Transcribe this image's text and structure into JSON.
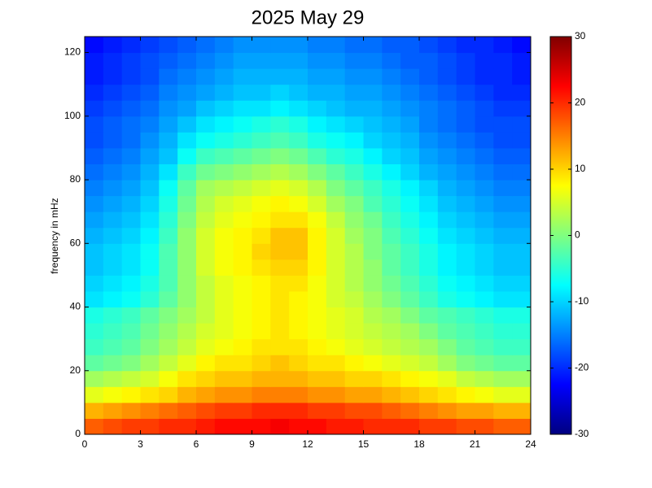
{
  "chart_data": {
    "type": "heatmap",
    "title": "2025 May 29",
    "y_label": "frequency in mHz",
    "colormap": "jet",
    "x": [
      0,
      1,
      2,
      3,
      4,
      5,
      6,
      7,
      8,
      9,
      10,
      11,
      12,
      13,
      14,
      15,
      16,
      17,
      18,
      19,
      20,
      21,
      22,
      23,
      24
    ],
    "y": [
      0,
      5,
      10,
      15,
      20,
      25,
      30,
      35,
      40,
      45,
      50,
      55,
      60,
      65,
      70,
      75,
      80,
      85,
      90,
      95,
      100,
      105,
      110,
      115,
      120,
      125
    ],
    "xlim": [
      0,
      24
    ],
    "xticks": [
      0,
      3,
      6,
      9,
      12,
      15,
      18,
      21,
      24
    ],
    "ylim": [
      0,
      125
    ],
    "yticks": [
      0,
      20,
      40,
      60,
      80,
      100,
      120
    ],
    "clim": [
      -30,
      30
    ],
    "cticks": [
      -30,
      -20,
      -10,
      0,
      10,
      20,
      30
    ],
    "values": [
      [
        17,
        18,
        19,
        19,
        20,
        20,
        21,
        22,
        22,
        22,
        23,
        22,
        22,
        21,
        21,
        20,
        20,
        20,
        19,
        19,
        18,
        18,
        17,
        17
      ],
      [
        12,
        13,
        14,
        15,
        16,
        17,
        18,
        19,
        19,
        20,
        20,
        20,
        19,
        19,
        18,
        18,
        17,
        16,
        15,
        14,
        13,
        13,
        12,
        12
      ],
      [
        6,
        7,
        8,
        9,
        10,
        12,
        13,
        14,
        14,
        15,
        15,
        15,
        14,
        14,
        13,
        13,
        12,
        11,
        10,
        9,
        8,
        7,
        6,
        6
      ],
      [
        2,
        3,
        4,
        5,
        7,
        9,
        10,
        11,
        11,
        12,
        12,
        12,
        11,
        11,
        10,
        10,
        9,
        8,
        7,
        6,
        4,
        3,
        2,
        2
      ],
      [
        -2,
        -1,
        0,
        2,
        4,
        6,
        8,
        9,
        9,
        10,
        11,
        10,
        9,
        9,
        8,
        7,
        6,
        5,
        4,
        2,
        0,
        -1,
        -2,
        -2
      ],
      [
        -4,
        -3,
        -2,
        0,
        2,
        4,
        6,
        7,
        8,
        9,
        9,
        9,
        8,
        7,
        6,
        5,
        4,
        3,
        2,
        0,
        -2,
        -3,
        -4,
        -4
      ],
      [
        -5,
        -4,
        -3,
        -1,
        1,
        3,
        5,
        6,
        7,
        8,
        9,
        8,
        7,
        6,
        5,
        4,
        3,
        2,
        0,
        -2,
        -3,
        -4,
        -5,
        -5
      ],
      [
        -6,
        -5,
        -4,
        -2,
        0,
        2,
        4,
        6,
        7,
        8,
        9,
        8,
        7,
        6,
        5,
        3,
        2,
        0,
        -2,
        -3,
        -4,
        -5,
        -6,
        -6
      ],
      [
        -9,
        -8,
        -7,
        -5,
        -2,
        1,
        4,
        6,
        7,
        8,
        9,
        8,
        7,
        5,
        4,
        2,
        0,
        -2,
        -4,
        -6,
        -7,
        -8,
        -9,
        -9
      ],
      [
        -10,
        -9,
        -8,
        -6,
        -3,
        1,
        4,
        6,
        7,
        8,
        9,
        9,
        7,
        5,
        3,
        1,
        -1,
        -3,
        -5,
        -7,
        -8,
        -9,
        -10,
        -10
      ],
      [
        -11,
        -10,
        -9,
        -7,
        -3,
        1,
        5,
        7,
        8,
        9,
        10,
        10,
        8,
        5,
        3,
        1,
        -2,
        -4,
        -6,
        -8,
        -9,
        -10,
        -11,
        -11
      ],
      [
        -11,
        -10,
        -9,
        -7,
        -3,
        1,
        5,
        7,
        8,
        10,
        11,
        11,
        8,
        5,
        3,
        0,
        -2,
        -4,
        -6,
        -8,
        -9,
        -10,
        -11,
        -11
      ],
      [
        -12,
        -11,
        -10,
        -8,
        -4,
        1,
        5,
        7,
        8,
        9,
        11,
        11,
        8,
        5,
        2,
        0,
        -3,
        -5,
        -7,
        -9,
        -10,
        -11,
        -12,
        -12
      ],
      [
        -13,
        -12,
        -11,
        -9,
        -5,
        0,
        4,
        6,
        7,
        8,
        9,
        9,
        7,
        4,
        1,
        -1,
        -4,
        -6,
        -8,
        -10,
        -11,
        -12,
        -13,
        -13
      ],
      [
        -14,
        -13,
        -12,
        -10,
        -6,
        -1,
        3,
        5,
        6,
        7,
        8,
        7,
        5,
        2,
        0,
        -3,
        -5,
        -7,
        -9,
        -11,
        -12,
        -13,
        -14,
        -14
      ],
      [
        -15,
        -14,
        -13,
        -11,
        -7,
        -2,
        2,
        3,
        4,
        5,
        6,
        5,
        3,
        0,
        -2,
        -4,
        -6,
        -8,
        -10,
        -12,
        -13,
        -14,
        -15,
        -15
      ],
      [
        -16,
        -15,
        -14,
        -12,
        -9,
        -4,
        -1,
        0,
        1,
        2,
        3,
        2,
        0,
        -2,
        -4,
        -6,
        -8,
        -10,
        -12,
        -13,
        -14,
        -15,
        -16,
        -16
      ],
      [
        -17,
        -16,
        -15,
        -13,
        -11,
        -7,
        -4,
        -3,
        -2,
        -1,
        0,
        -1,
        -3,
        -5,
        -6,
        -8,
        -10,
        -11,
        -13,
        -14,
        -15,
        -16,
        -17,
        -17
      ],
      [
        -18,
        -17,
        -16,
        -14,
        -12,
        -9,
        -7,
        -6,
        -5,
        -4,
        -3,
        -4,
        -6,
        -7,
        -8,
        -10,
        -11,
        -12,
        -14,
        -15,
        -16,
        -17,
        -18,
        -18
      ],
      [
        -18,
        -17,
        -16,
        -15,
        -13,
        -11,
        -9,
        -8,
        -7,
        -6,
        -5,
        -6,
        -8,
        -9,
        -10,
        -11,
        -12,
        -13,
        -15,
        -16,
        -17,
        -18,
        -18,
        -18
      ],
      [
        -19,
        -18,
        -17,
        -16,
        -14,
        -13,
        -11,
        -10,
        -9,
        -9,
        -8,
        -9,
        -10,
        -11,
        -12,
        -12,
        -13,
        -14,
        -15,
        -16,
        -17,
        -18,
        -19,
        -19
      ],
      [
        -20,
        -19,
        -18,
        -17,
        -15,
        -14,
        -13,
        -12,
        -11,
        -11,
        -10,
        -11,
        -12,
        -12,
        -13,
        -13,
        -14,
        -15,
        -16,
        -17,
        -18,
        -19,
        -20,
        -20
      ],
      [
        -21,
        -20,
        -19,
        -18,
        -16,
        -15,
        -14,
        -13,
        -12,
        -12,
        -12,
        -12,
        -13,
        -13,
        -14,
        -14,
        -15,
        -16,
        -17,
        -18,
        -19,
        -20,
        -20,
        -21
      ],
      [
        -21,
        -20,
        -19,
        -18,
        -17,
        -16,
        -15,
        -14,
        -13,
        -13,
        -13,
        -13,
        -14,
        -14,
        -15,
        -15,
        -16,
        -17,
        -17,
        -18,
        -19,
        -20,
        -20,
        -21
      ],
      [
        -22,
        -21,
        -20,
        -19,
        -18,
        -17,
        -16,
        -15,
        -14,
        -14,
        -14,
        -14,
        -15,
        -15,
        -16,
        -16,
        -17,
        -17,
        -18,
        -19,
        -20,
        -20,
        -21,
        -22
      ]
    ]
  }
}
